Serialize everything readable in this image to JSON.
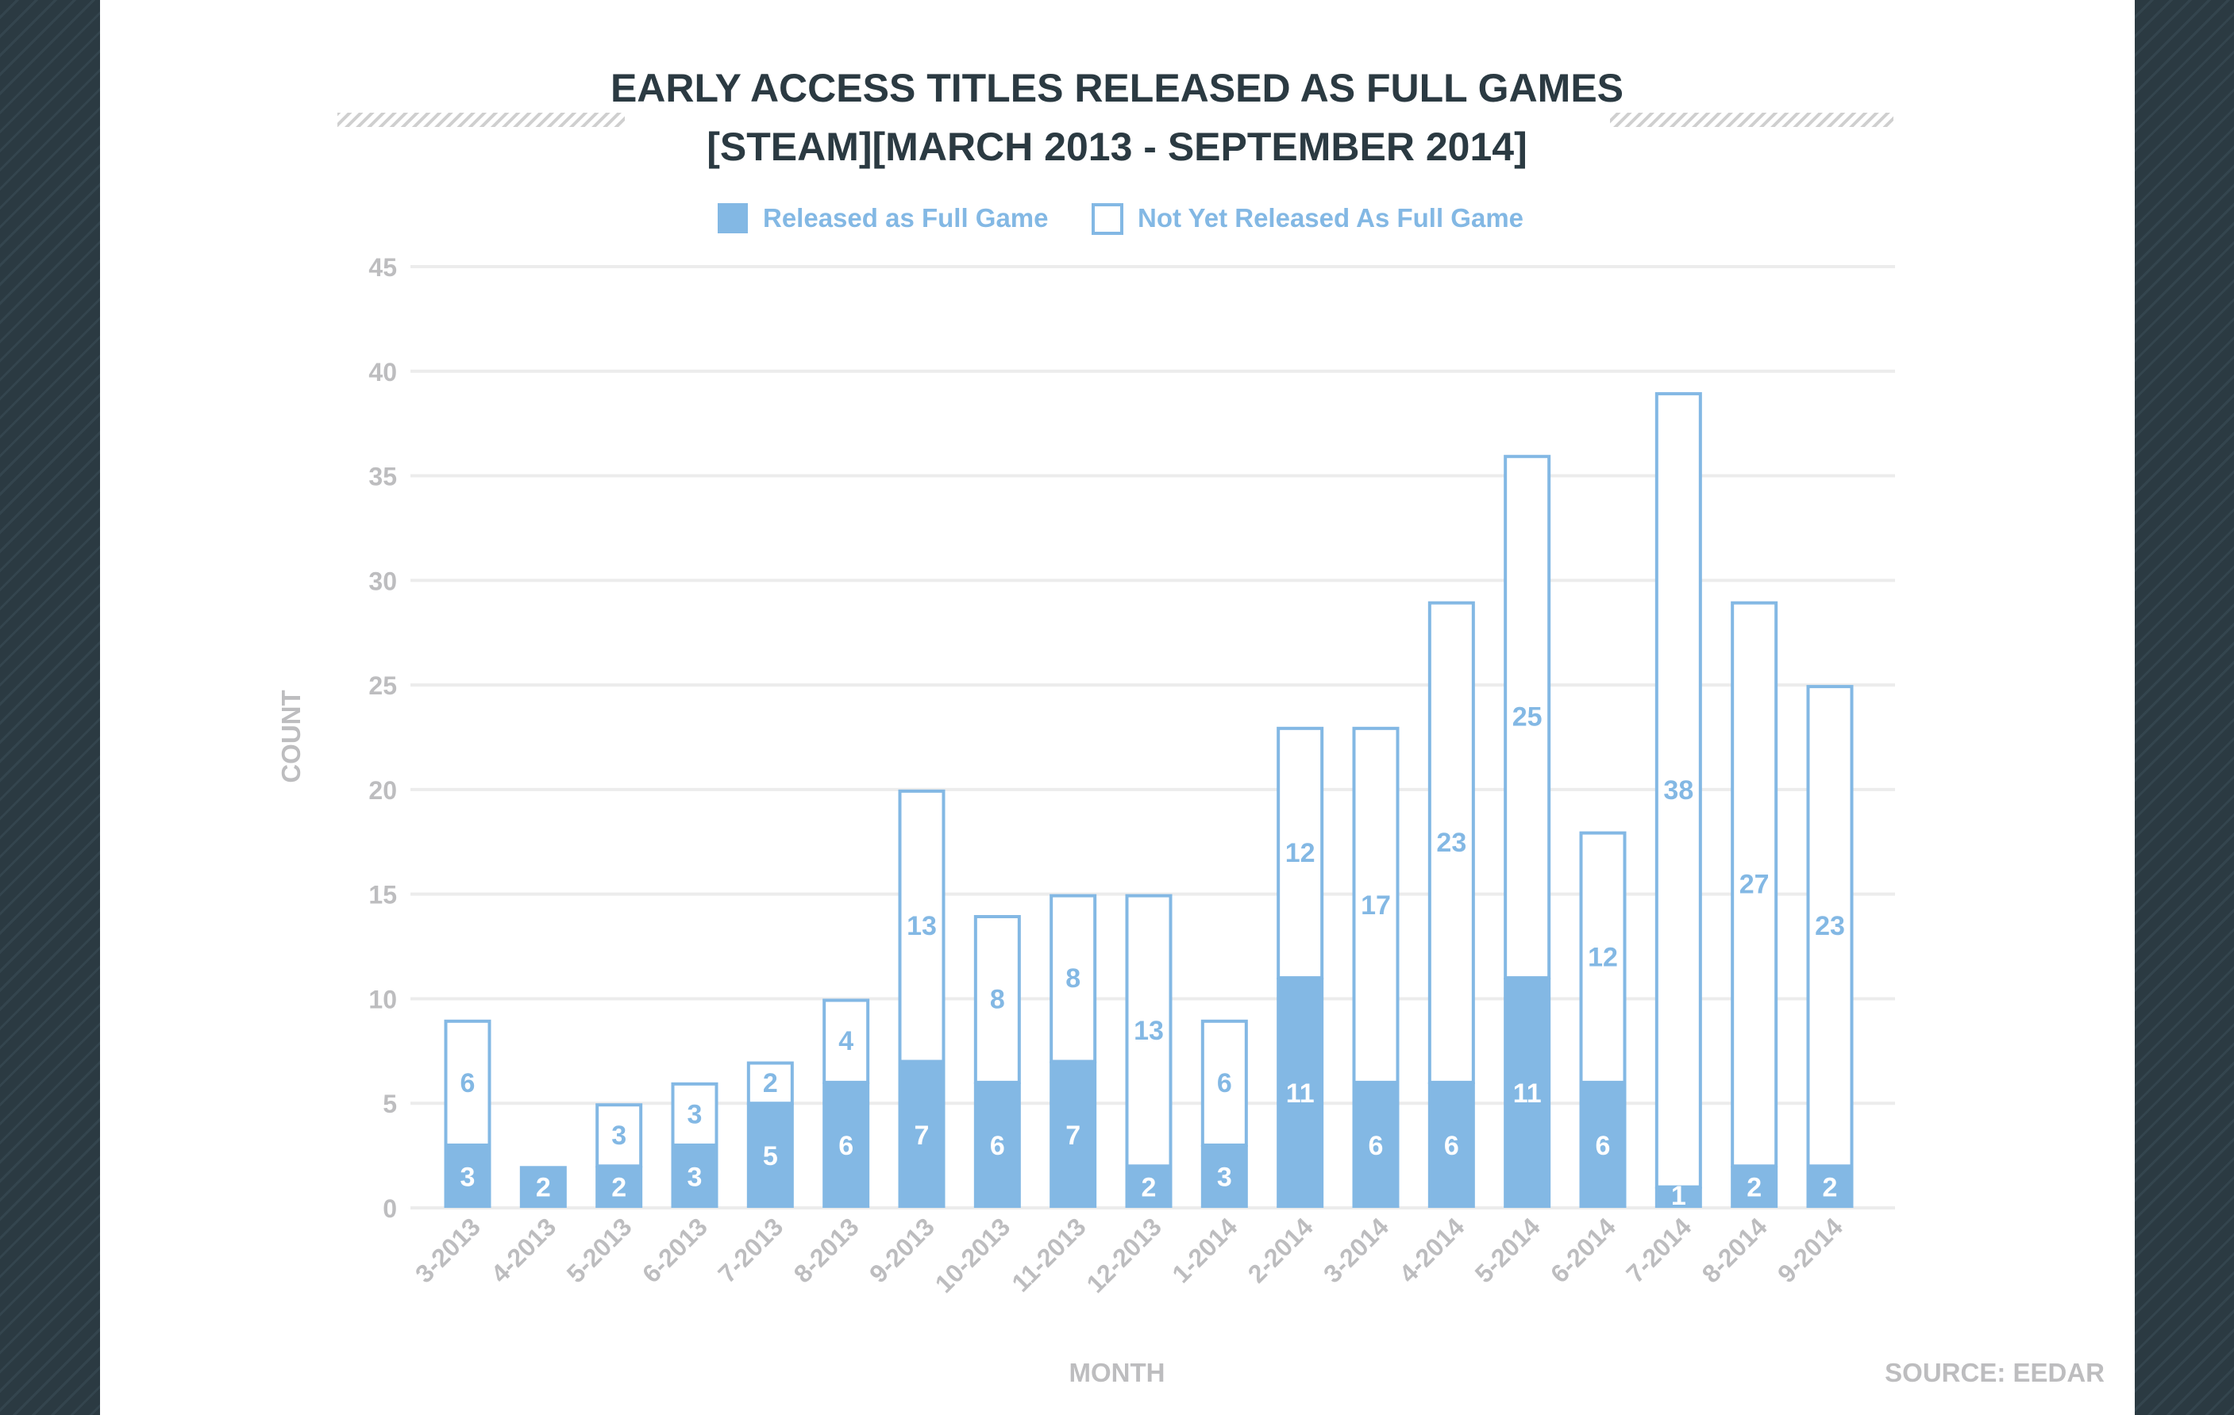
{
  "chart_data": {
    "type": "bar",
    "stacked": true,
    "title": "EARLY ACCESS TITLES RELEASED AS FULL GAMES",
    "subtitle": "[STEAM][MARCH 2013 - SEPTEMBER 2014]",
    "xlabel": "MONTH",
    "ylabel": "COUNT",
    "ylim": [
      0,
      45
    ],
    "yticks": [
      0,
      5,
      10,
      15,
      20,
      25,
      30,
      35,
      40,
      45
    ],
    "grid": true,
    "legend_position": "top",
    "source": "SOURCE: EEDAR",
    "categories": [
      "3-2013",
      "4-2013",
      "5-2013",
      "6-2013",
      "7-2013",
      "8-2013",
      "9-2013",
      "10-2013",
      "11-2013",
      "12-2013",
      "1-2014",
      "2-2014",
      "3-2014",
      "4-2014",
      "5-2014",
      "6-2014",
      "7-2014",
      "8-2014",
      "9-2014"
    ],
    "series": [
      {
        "name": "Released as Full Game",
        "color": "#83b8e4",
        "style": "filled",
        "values": [
          3,
          2,
          2,
          3,
          5,
          6,
          7,
          6,
          7,
          2,
          3,
          11,
          6,
          6,
          11,
          6,
          1,
          2,
          2
        ]
      },
      {
        "name": "Not Yet Released As Full Game",
        "color": "#83b8e4",
        "style": "outline",
        "values": [
          6,
          0,
          3,
          3,
          2,
          4,
          13,
          8,
          8,
          13,
          6,
          12,
          17,
          23,
          25,
          12,
          38,
          27,
          23
        ]
      }
    ]
  },
  "colors": {
    "accent": "#83b8e4",
    "title": "#2b3a42",
    "axis_text": "#bdbdbf",
    "grid": "#ececec",
    "background": "#2b3a42"
  }
}
